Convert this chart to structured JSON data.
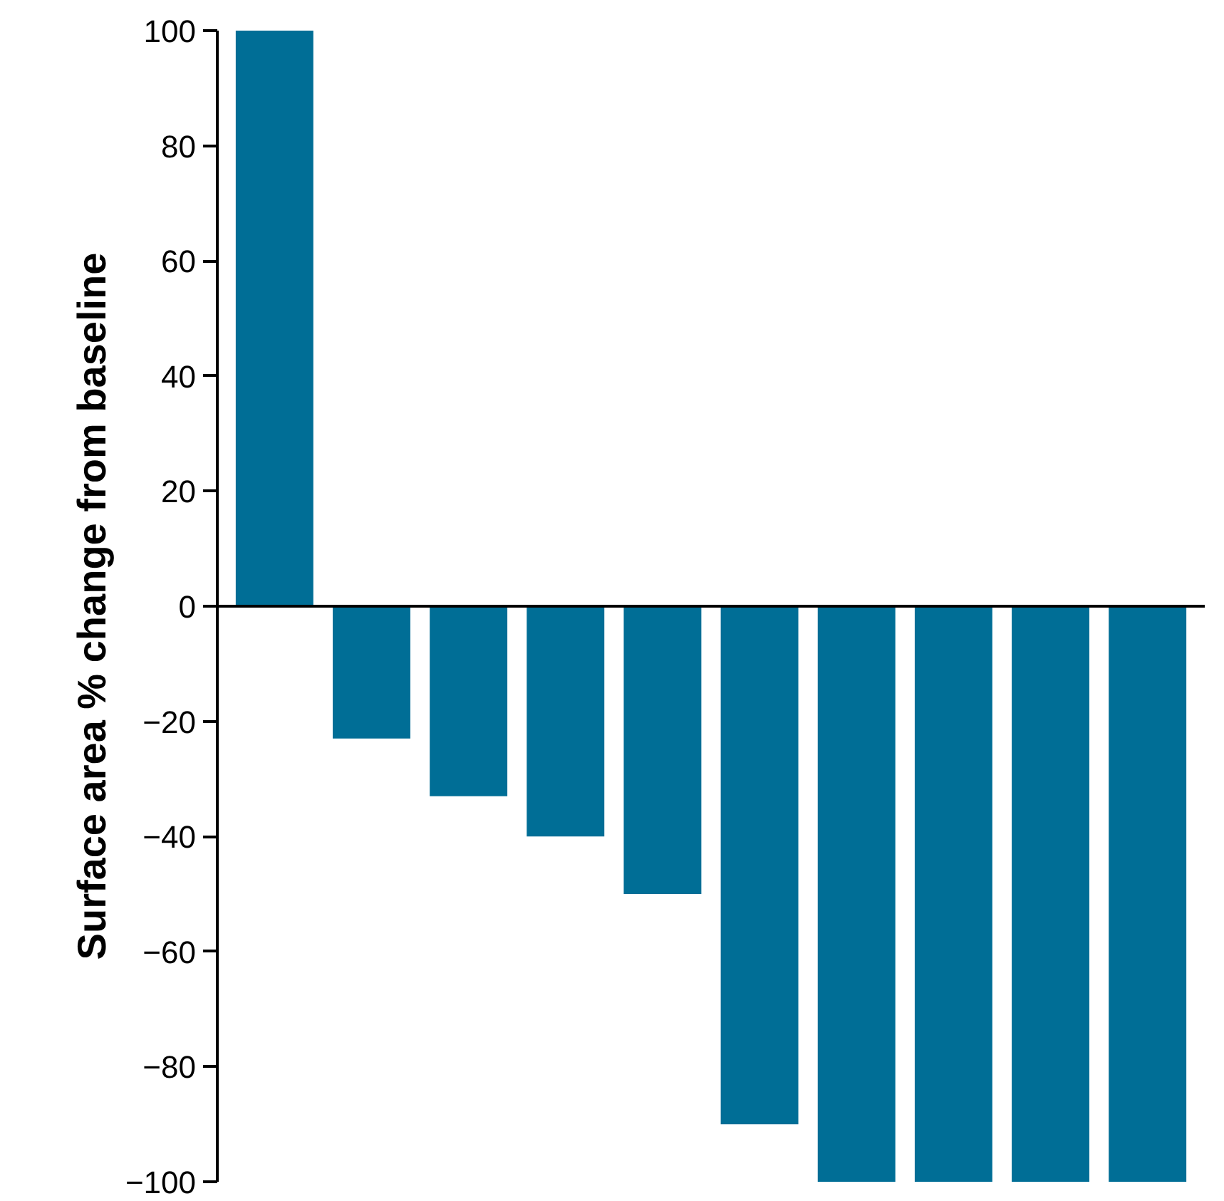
{
  "chart_data": {
    "type": "bar",
    "ylabel": "Surface area % change from baseline",
    "categories": [
      null,
      null,
      null,
      null,
      null,
      null,
      null,
      null,
      null,
      null
    ],
    "values": [
      100,
      -23,
      -33,
      -40,
      -50,
      -90,
      -100,
      -100,
      -100,
      -100
    ],
    "color": "#006e96",
    "ylim": [
      -100,
      100
    ],
    "yticks": [
      {
        "value": -100,
        "label": "−100"
      },
      {
        "value": -80,
        "label": "−80"
      },
      {
        "value": -60,
        "label": "−60"
      },
      {
        "value": -40,
        "label": "−40"
      },
      {
        "value": -20,
        "label": "−20"
      },
      0,
      20,
      40,
      60,
      80,
      100
    ]
  }
}
